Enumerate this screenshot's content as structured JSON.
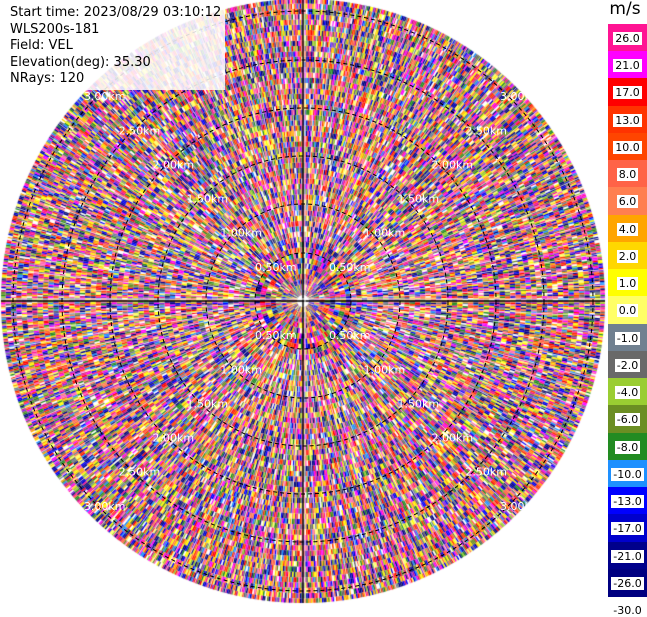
{
  "info": {
    "start_time": "Start time: 2023/08/29 03:10:12",
    "instrument": "WLS200s-181",
    "field": "Field: VEL",
    "elevation": "Elevation(deg): 35.30",
    "nrays": "NRays: 120"
  },
  "colorbar": {
    "unit": "m/s",
    "ticks": [
      "26.0",
      "21.0",
      "17.0",
      "13.0",
      "10.0",
      "8.0",
      "6.0",
      "4.0",
      "2.0",
      "1.0",
      "0.0",
      "-1.0",
      "-2.0",
      "-4.0",
      "-6.0",
      "-8.0",
      "-10.0",
      "-13.0",
      "-17.0",
      "-21.0",
      "-26.0",
      "-30.0"
    ],
    "colors": [
      "#ff1493",
      "#ff00ff",
      "#ff0000",
      "#ff3300",
      "#ff4500",
      "#ff6347",
      "#ff7f50",
      "#ffa500",
      "#ffd700",
      "#ffff00",
      "#ffff66",
      "#708090",
      "#696969",
      "#9acd32",
      "#6b8e23",
      "#228b22",
      "#1e90ff",
      "#0000ff",
      "#0000cd",
      "#00008b",
      "#000080",
      "#191970"
    ]
  },
  "range_labels": [
    "0.50km",
    "1.00km",
    "1.50km",
    "2.00km",
    "2.50km",
    "3.00km"
  ],
  "radar": {
    "nrays": 120,
    "palette": [
      "#ff1493",
      "#ff00ff",
      "#ff0000",
      "#ff3300",
      "#ff4500",
      "#ff6347",
      "#ff7f50",
      "#ffa500",
      "#ffd700",
      "#ffff00",
      "#ffff66",
      "#708090",
      "#696969",
      "#9acd32",
      "#6b8e23",
      "#228b22",
      "#1e90ff",
      "#0000ff",
      "#0000cd",
      "#00008b",
      "#000080",
      "#191970",
      "#ffffff",
      "#c71585",
      "#8a2be2",
      "#ff69b4"
    ]
  }
}
